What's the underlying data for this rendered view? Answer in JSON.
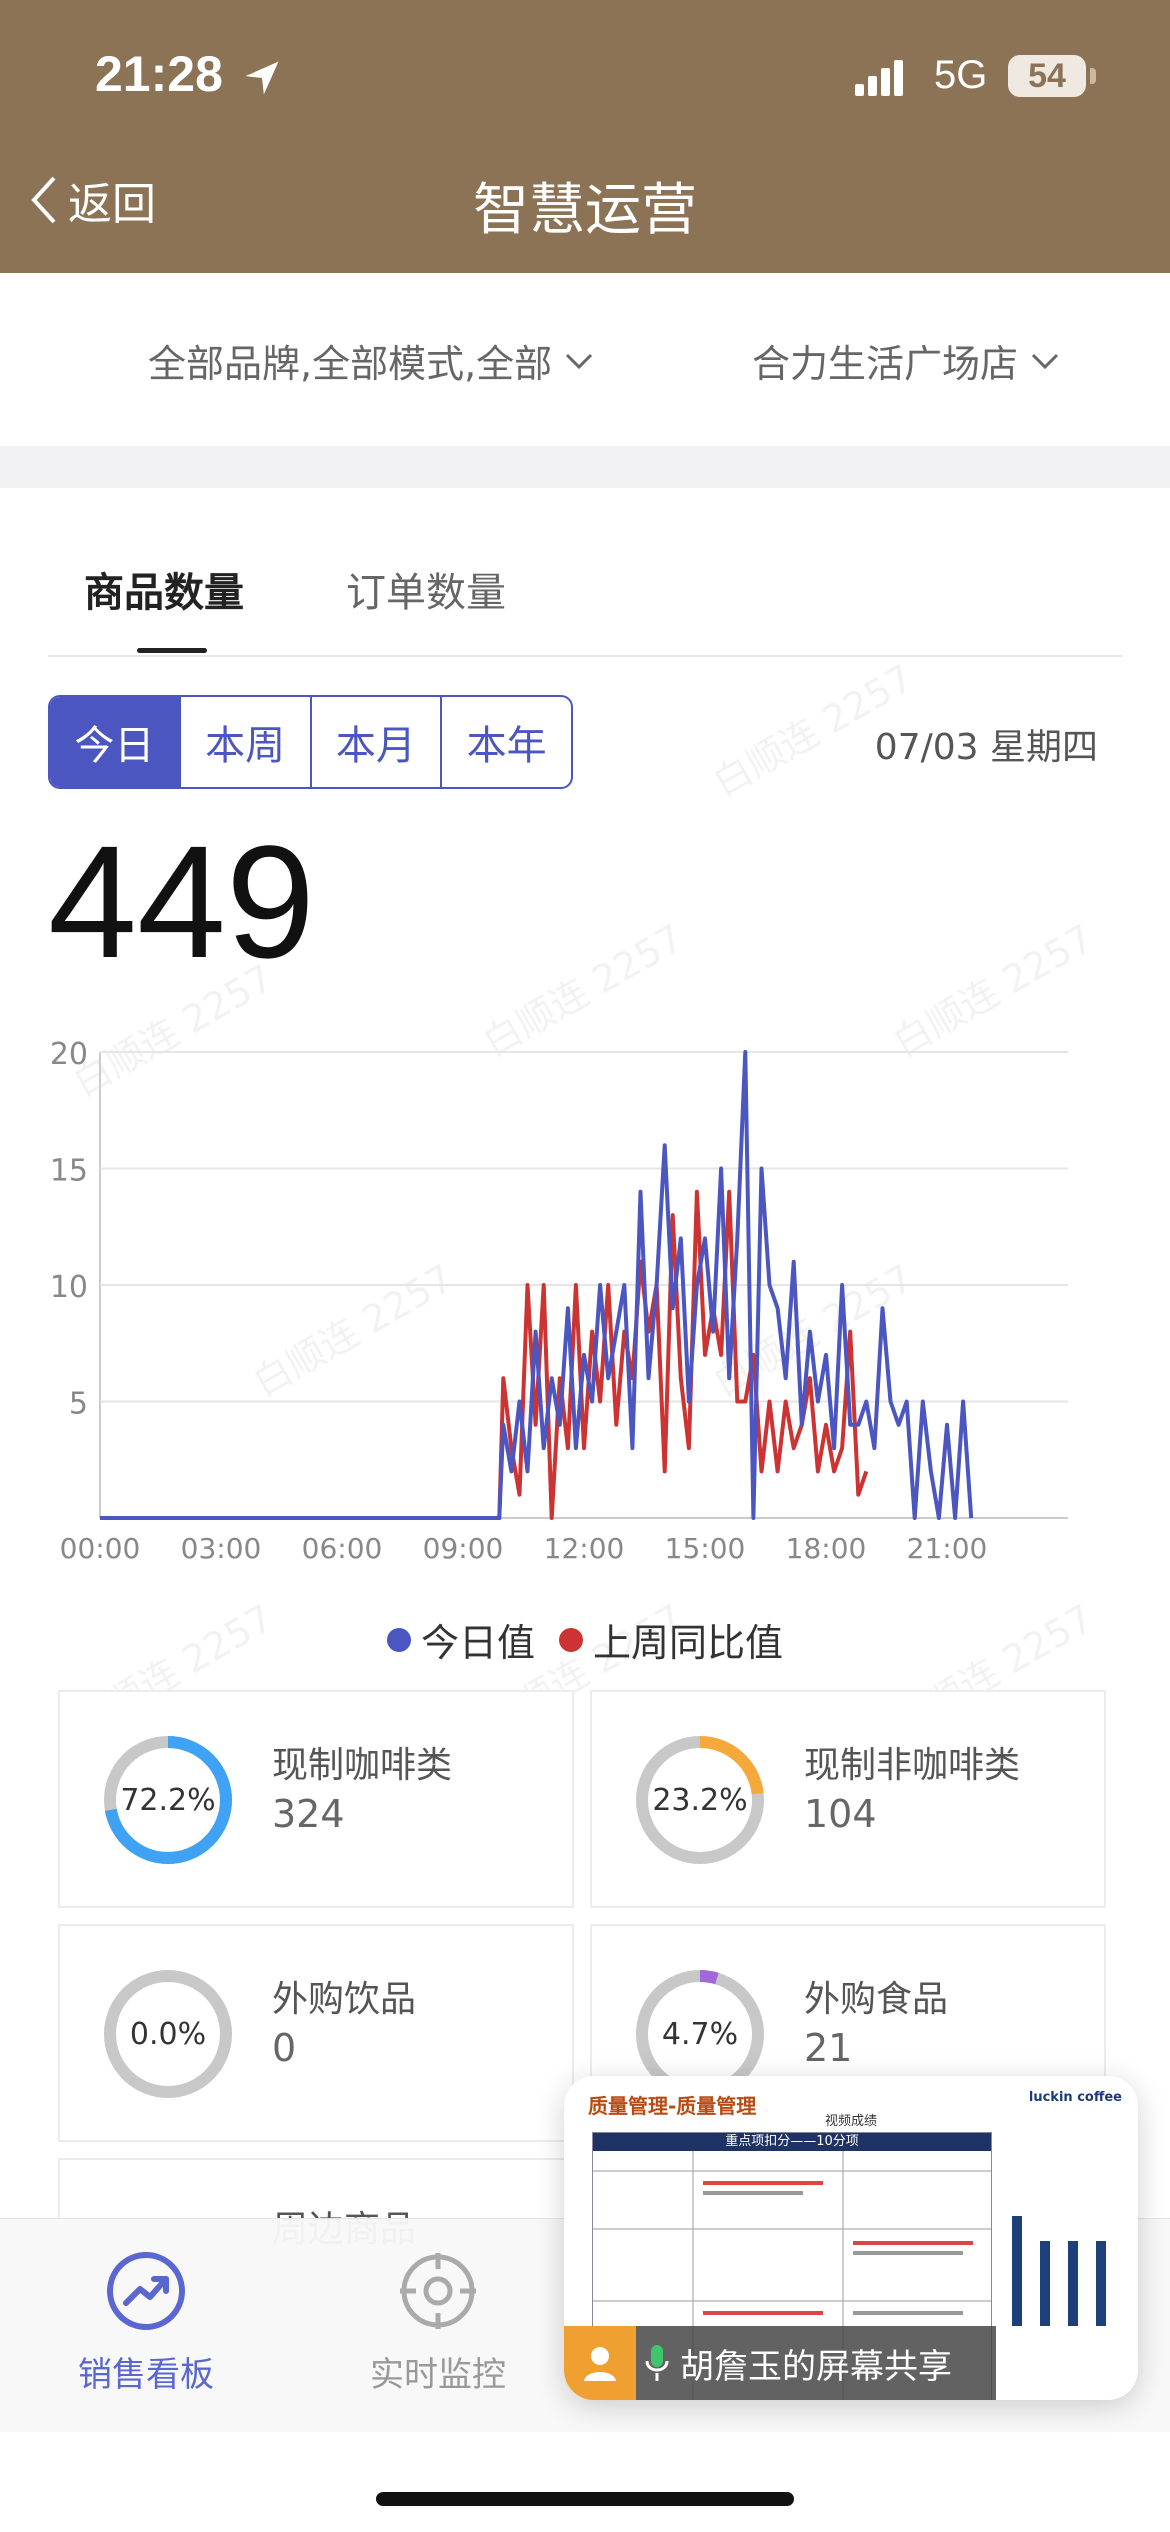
{
  "status_bar": {
    "time": "21:28",
    "network": "5G",
    "battery": "54"
  },
  "header": {
    "back_label": "返回",
    "title": "智慧运营"
  },
  "filters": {
    "brand_mode": "全部品牌,全部模式,全部",
    "store": "合力生活广场店"
  },
  "tabs": [
    {
      "label": "商品数量",
      "active": true
    },
    {
      "label": "订单数量",
      "active": false
    }
  ],
  "range_buttons": [
    {
      "label": "今日",
      "active": true
    },
    {
      "label": "本周"
    },
    {
      "label": "本月"
    },
    {
      "label": "本年"
    }
  ],
  "date": "07/03 星期四",
  "total": "449",
  "watermark_text": "白顺连 2257",
  "chart_data": {
    "type": "line",
    "x_ticks": [
      "00:00",
      "03:00",
      "06:00",
      "09:00",
      "12:00",
      "15:00",
      "18:00",
      "21:00"
    ],
    "y_ticks": [
      5,
      10,
      15,
      20
    ],
    "ylim": [
      0,
      20
    ],
    "x_range_hours": [
      0,
      24
    ],
    "grid": true,
    "legend_position": "bottom",
    "series": [
      {
        "name": "今日值",
        "color": "#4b56c0",
        "points": [
          [
            0,
            0
          ],
          [
            9.9,
            0
          ],
          [
            10.0,
            4
          ],
          [
            10.2,
            2
          ],
          [
            10.4,
            5
          ],
          [
            10.6,
            2
          ],
          [
            10.8,
            8
          ],
          [
            11.0,
            3
          ],
          [
            11.2,
            6
          ],
          [
            11.4,
            4
          ],
          [
            11.6,
            9
          ],
          [
            11.8,
            3
          ],
          [
            12.0,
            7
          ],
          [
            12.2,
            5
          ],
          [
            12.4,
            10
          ],
          [
            12.6,
            6
          ],
          [
            12.8,
            8
          ],
          [
            13.0,
            10
          ],
          [
            13.2,
            3
          ],
          [
            13.4,
            14
          ],
          [
            13.6,
            6
          ],
          [
            13.8,
            10
          ],
          [
            14.0,
            16
          ],
          [
            14.2,
            9
          ],
          [
            14.4,
            12
          ],
          [
            14.6,
            5
          ],
          [
            14.8,
            10
          ],
          [
            15.0,
            12
          ],
          [
            15.2,
            8
          ],
          [
            15.4,
            15
          ],
          [
            15.6,
            6
          ],
          [
            15.8,
            12
          ],
          [
            16.0,
            20
          ],
          [
            16.2,
            0
          ],
          [
            16.4,
            15
          ],
          [
            16.6,
            10
          ],
          [
            16.8,
            9
          ],
          [
            17.0,
            6
          ],
          [
            17.2,
            11
          ],
          [
            17.4,
            4
          ],
          [
            17.6,
            8
          ],
          [
            17.8,
            5
          ],
          [
            18.0,
            7
          ],
          [
            18.2,
            3
          ],
          [
            18.4,
            10
          ],
          [
            18.6,
            4
          ],
          [
            18.8,
            4
          ],
          [
            19.0,
            5
          ],
          [
            19.2,
            3
          ],
          [
            19.4,
            9
          ],
          [
            19.6,
            5
          ],
          [
            19.8,
            4
          ],
          [
            20.0,
            5
          ],
          [
            20.2,
            0
          ],
          [
            20.4,
            5
          ],
          [
            20.6,
            2
          ],
          [
            20.8,
            0
          ],
          [
            21.0,
            4
          ],
          [
            21.2,
            0
          ],
          [
            21.4,
            5
          ],
          [
            21.6,
            0
          ]
        ]
      },
      {
        "name": "上周同比值",
        "color": "#cc3333",
        "points": [
          [
            0,
            0
          ],
          [
            9.9,
            0
          ],
          [
            10.0,
            6
          ],
          [
            10.2,
            3
          ],
          [
            10.4,
            1
          ],
          [
            10.6,
            10
          ],
          [
            10.8,
            4
          ],
          [
            11.0,
            10
          ],
          [
            11.2,
            0
          ],
          [
            11.4,
            6
          ],
          [
            11.6,
            3
          ],
          [
            11.8,
            10
          ],
          [
            12.0,
            3
          ],
          [
            12.2,
            8
          ],
          [
            12.4,
            5
          ],
          [
            12.6,
            10
          ],
          [
            12.8,
            4
          ],
          [
            13.0,
            8
          ],
          [
            13.2,
            6
          ],
          [
            13.4,
            11
          ],
          [
            13.6,
            8
          ],
          [
            13.8,
            10
          ],
          [
            14.0,
            2
          ],
          [
            14.2,
            13
          ],
          [
            14.4,
            6
          ],
          [
            14.6,
            3
          ],
          [
            14.8,
            14
          ],
          [
            15.0,
            7
          ],
          [
            15.2,
            9
          ],
          [
            15.4,
            7
          ],
          [
            15.6,
            14
          ],
          [
            15.8,
            5
          ],
          [
            16.0,
            5
          ],
          [
            16.2,
            7
          ],
          [
            16.4,
            2
          ],
          [
            16.6,
            5
          ],
          [
            16.8,
            2
          ],
          [
            17.0,
            5
          ],
          [
            17.2,
            3
          ],
          [
            17.4,
            4
          ],
          [
            17.6,
            6
          ],
          [
            17.8,
            2
          ],
          [
            18.0,
            4
          ],
          [
            18.2,
            2
          ],
          [
            18.4,
            3
          ],
          [
            18.6,
            8
          ],
          [
            18.8,
            1
          ],
          [
            19.0,
            2
          ]
        ]
      }
    ]
  },
  "stats": [
    {
      "percent": "72.2%",
      "fraction": 0.722,
      "label": "现制咖啡类",
      "value": "324",
      "color": "#3fa2f5"
    },
    {
      "percent": "23.2%",
      "fraction": 0.232,
      "label": "现制非咖啡类",
      "value": "104",
      "color": "#f5a93a"
    },
    {
      "percent": "0.0%",
      "fraction": 0.0,
      "label": "外购饮品",
      "value": "0",
      "color": "#9b59d0"
    },
    {
      "percent": "4.7%",
      "fraction": 0.047,
      "label": "外购食品",
      "value": "21",
      "color": "#a26ad9"
    }
  ],
  "partial_stat_label": "周边商品",
  "bottom_nav": [
    {
      "label": "销售看板",
      "icon": "trend-up-icon",
      "active": true
    },
    {
      "label": "实时监控",
      "icon": "target-icon",
      "active": false
    }
  ],
  "screen_share": {
    "presenter": "胡詹玉的屏幕共享",
    "slide_title": "质量管理-质量管理",
    "slide_logo": "luckin coffee",
    "slide_subtitle": "视频成绩",
    "slide_table_header": "重点项扣分——10分项"
  }
}
